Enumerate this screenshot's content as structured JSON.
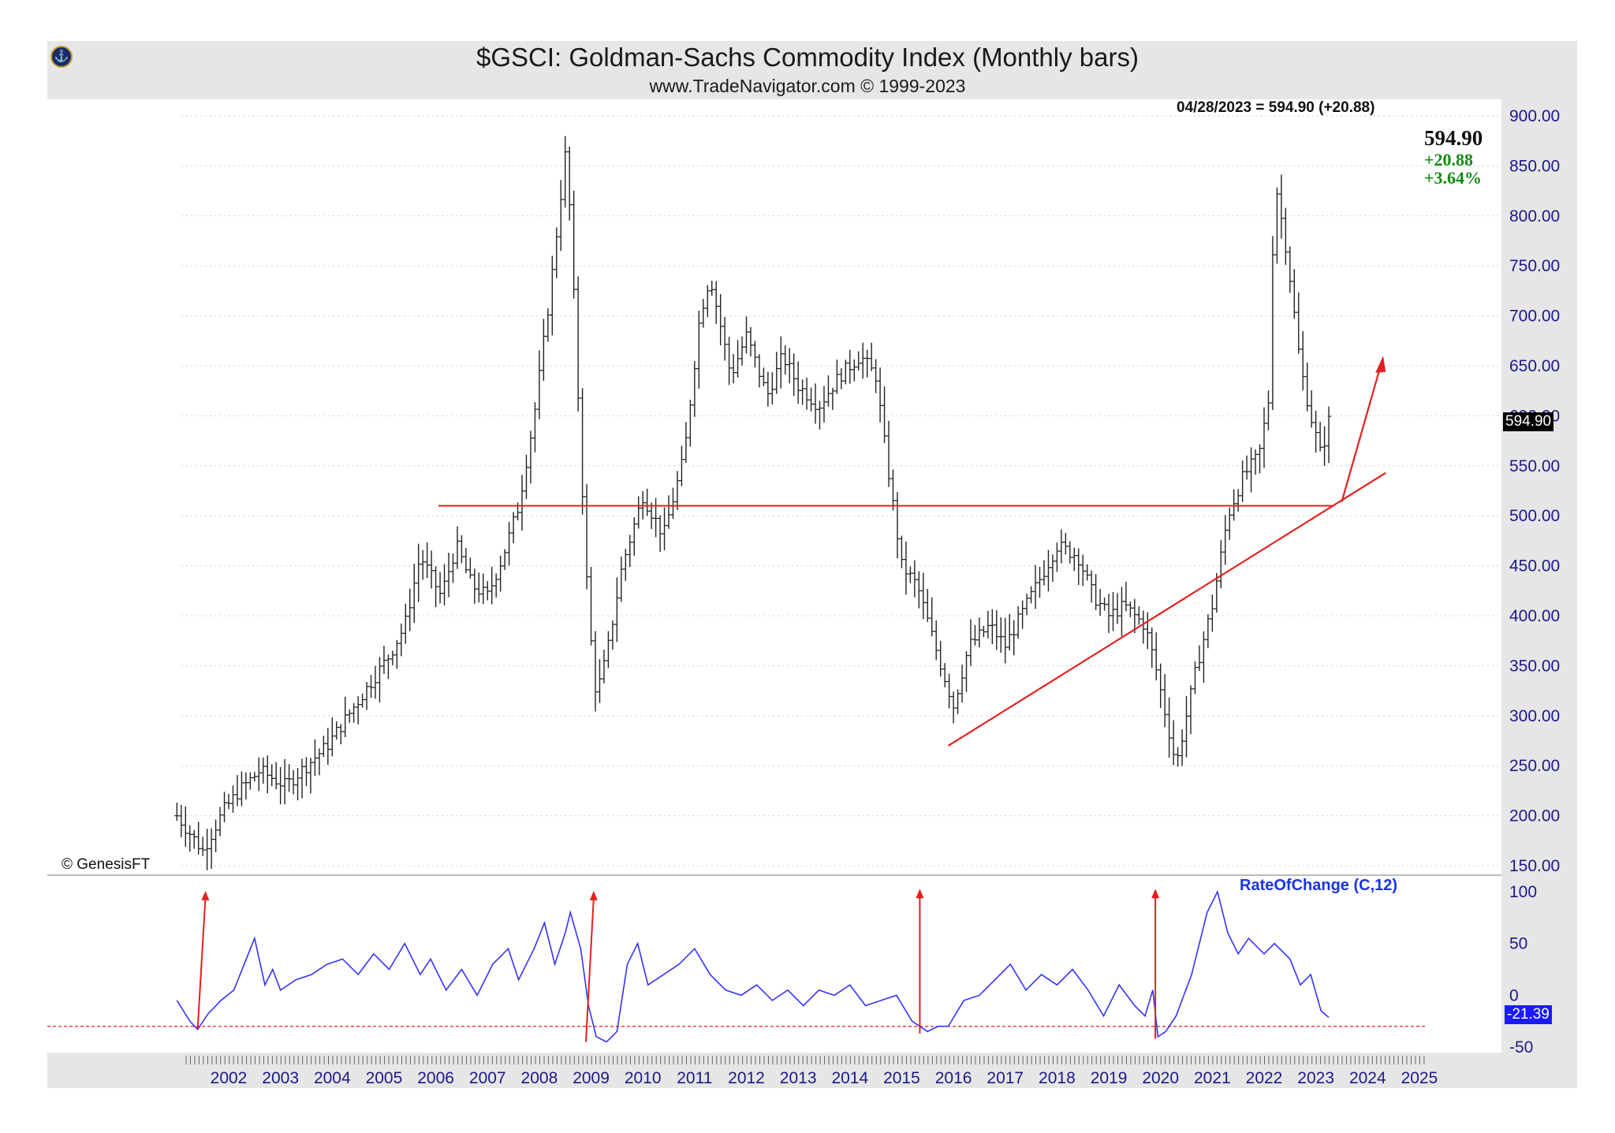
{
  "header": {
    "title": "$GSCI:  Goldman-Sachs Commodity Index  (Monthly bars)",
    "subtitle": "www.TradeNavigator.com © 1999-2023",
    "logo_icon": "trade-navigator-logo-icon"
  },
  "readout": {
    "line": "04/28/2023 = 594.90 (+20.88)",
    "last": "594.90",
    "change": "+20.88",
    "percent": "+3.64%",
    "up_color": "#138a13"
  },
  "copyright": "© GenesisFT",
  "price_tag": "594.90",
  "roc_tag": "-21.39",
  "roc_label": "RateOfChange (C,12)",
  "chart_data": [
    {
      "type": "ohlc",
      "title": "$GSCI:  Goldman-Sachs Commodity Index  (Monthly bars)",
      "yticks": [
        "900.00",
        "850.00",
        "800.00",
        "750.00",
        "700.00",
        "650.00",
        "600.00",
        "550.00",
        "500.00",
        "450.00",
        "400.00",
        "350.00",
        "300.00",
        "250.00",
        "200.00",
        "150.00"
      ],
      "ylim": [
        150,
        900
      ],
      "xticks": [
        "2002",
        "2003",
        "2004",
        "2005",
        "2006",
        "2007",
        "2008",
        "2009",
        "2010",
        "2011",
        "2012",
        "2013",
        "2014",
        "2015",
        "2016",
        "2017",
        "2018",
        "2019",
        "2020",
        "2021",
        "2022",
        "2023",
        "2024",
        "2025"
      ],
      "x_range": [
        2001.0,
        2025.4
      ],
      "grid": "horizontal dotted",
      "series": [
        {
          "x": [
            2001.0,
            2001.5,
            2001.9,
            2002.2,
            2002.6,
            2003.1,
            2003.5,
            2003.9,
            2004.3,
            2004.7,
            2005.1,
            2005.4,
            2005.7,
            2006.1,
            2006.4,
            2006.7,
            2007.0,
            2007.3,
            2007.6,
            2007.9,
            2008.2,
            2008.5,
            2008.6,
            2008.8,
            2008.95,
            2009.1,
            2009.3,
            2009.6,
            2010.0,
            2010.4,
            2010.8,
            2011.1,
            2011.3,
            2011.7,
            2012.0,
            2012.4,
            2012.7,
            2013.0,
            2013.4,
            2013.8,
            2014.2,
            2014.5,
            2014.7,
            2015.0,
            2015.3,
            2015.7,
            2016.0,
            2016.3,
            2016.7,
            2017.0,
            2017.5,
            2018.0,
            2018.4,
            2018.7,
            2019.0,
            2019.3,
            2019.7,
            2019.9,
            2020.1,
            2020.3,
            2020.7,
            2021.0,
            2021.3,
            2021.6,
            2021.9,
            2022.1,
            2022.2,
            2022.45,
            2022.7,
            2022.9,
            2023.1,
            2023.25
          ],
          "close": [
            200,
            165,
            205,
            225,
            245,
            230,
            250,
            270,
            300,
            330,
            360,
            390,
            460,
            420,
            470,
            430,
            420,
            460,
            510,
            600,
            720,
            860,
            800,
            560,
            400,
            320,
            360,
            450,
            520,
            480,
            560,
            700,
            740,
            640,
            680,
            620,
            660,
            630,
            610,
            640,
            660,
            640,
            560,
            450,
            430,
            360,
            310,
            370,
            390,
            370,
            420,
            470,
            460,
            420,
            400,
            410,
            390,
            350,
            300,
            250,
            350,
            410,
            500,
            540,
            560,
            620,
            840,
            760,
            650,
            600,
            560,
            594.9
          ]
        }
      ]
    },
    {
      "type": "line",
      "title": "RateOfChange (C,12)",
      "yticks": [
        "100",
        "50",
        "0",
        "-50"
      ],
      "ylim": [
        -50,
        100
      ],
      "reference_line": -30,
      "series": [
        {
          "name": "RateOfChange (C,12)",
          "x": [
            2001.0,
            2001.25,
            2001.4,
            2001.6,
            2001.85,
            2002.1,
            2002.3,
            2002.5,
            2002.7,
            2002.85,
            2003.0,
            2003.3,
            2003.6,
            2003.9,
            2004.2,
            2004.5,
            2004.8,
            2005.1,
            2005.4,
            2005.7,
            2005.9,
            2006.2,
            2006.5,
            2006.8,
            2007.1,
            2007.4,
            2007.6,
            2007.9,
            2008.1,
            2008.3,
            2008.5,
            2008.6,
            2008.8,
            2008.95,
            2009.1,
            2009.3,
            2009.5,
            2009.7,
            2009.9,
            2010.1,
            2010.4,
            2010.7,
            2011.0,
            2011.3,
            2011.6,
            2011.9,
            2012.2,
            2012.5,
            2012.8,
            2013.1,
            2013.4,
            2013.7,
            2014.0,
            2014.3,
            2014.6,
            2014.9,
            2015.2,
            2015.5,
            2015.7,
            2015.9,
            2016.2,
            2016.5,
            2016.8,
            2017.1,
            2017.4,
            2017.7,
            2018.0,
            2018.3,
            2018.6,
            2018.9,
            2019.2,
            2019.5,
            2019.7,
            2019.85,
            2019.95,
            2020.1,
            2020.3,
            2020.6,
            2020.9,
            2021.1,
            2021.3,
            2021.5,
            2021.7,
            2022.0,
            2022.2,
            2022.5,
            2022.7,
            2022.9,
            2023.1,
            2023.25
          ],
          "y": [
            -5,
            -25,
            -33,
            -18,
            -5,
            5,
            30,
            55,
            10,
            25,
            5,
            15,
            20,
            30,
            35,
            20,
            40,
            25,
            50,
            20,
            35,
            5,
            25,
            0,
            30,
            45,
            15,
            45,
            70,
            30,
            60,
            80,
            45,
            -10,
            -40,
            -45,
            -35,
            30,
            50,
            10,
            20,
            30,
            45,
            20,
            5,
            0,
            10,
            -5,
            5,
            -10,
            5,
            0,
            10,
            -10,
            -5,
            0,
            -25,
            -35,
            -30,
            -30,
            -5,
            0,
            15,
            30,
            5,
            20,
            10,
            25,
            5,
            -20,
            10,
            -10,
            -20,
            5,
            -40,
            -35,
            -20,
            20,
            80,
            100,
            60,
            40,
            55,
            40,
            50,
            35,
            10,
            20,
            -15,
            -21.39
          ]
        }
      ]
    }
  ],
  "annotations": {
    "line_color": "#e61e1e",
    "roc_color": "#3333ff",
    "bar_color": "#222222"
  }
}
